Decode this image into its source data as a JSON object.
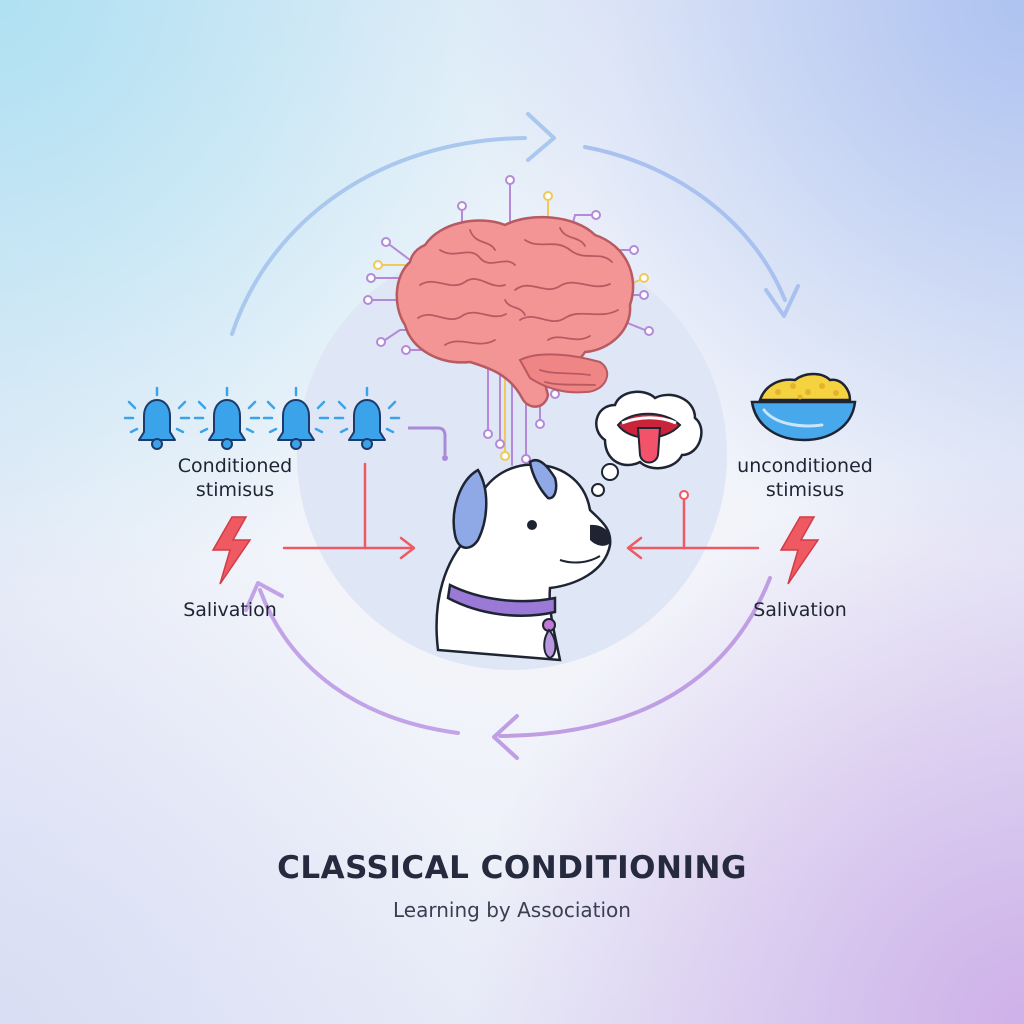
{
  "title": "CLASSICAL CONDITIONING",
  "subtitle": "Learning by Association",
  "left": {
    "stimulus_line1": "Conditioned",
    "stimulus_line2": "stimisus",
    "response": "Salivation"
  },
  "right": {
    "stimulus_line1": "unconditioned",
    "stimulus_line2": "stimisus",
    "response": "Salivation"
  },
  "colors": {
    "cycle_top": "#a7c3ef",
    "cycle_bottom": "#c09ee6",
    "arrow_red": "#ef5a62",
    "bell": "#3aa3ea",
    "brain": "#f28e8e",
    "collar": "#9a7ad6",
    "bowl": "#47a8ec"
  },
  "icons": [
    "bell-icon",
    "lightning-icon",
    "brain-icon",
    "dog-icon",
    "food-bowl-icon",
    "thought-bubble-icon",
    "mouth-tongue-icon"
  ]
}
